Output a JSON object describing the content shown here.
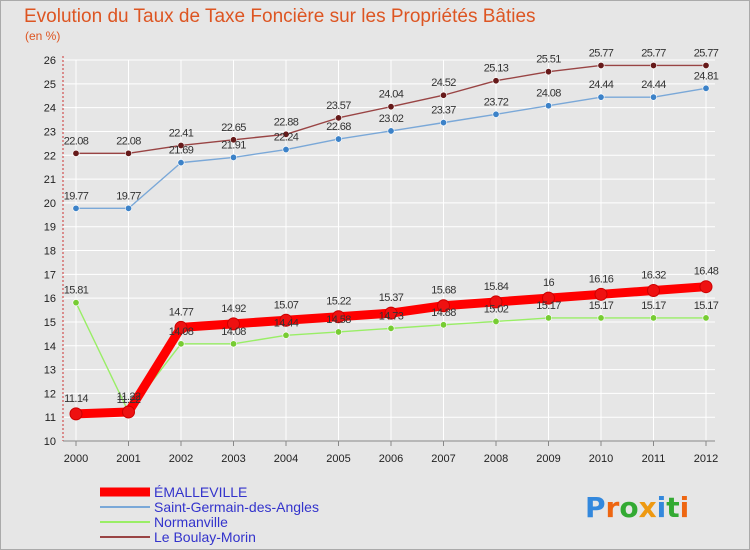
{
  "chart_data": {
    "type": "line",
    "title": "Evolution du Taux de Taxe Foncière sur les Propriétés Bâties",
    "subtitle": "(en %)",
    "xlabel": "",
    "ylabel": "",
    "categories": [
      "2000",
      "2001",
      "2002",
      "2003",
      "2004",
      "2005",
      "2006",
      "2007",
      "2008",
      "2009",
      "2010",
      "2011",
      "2012"
    ],
    "ylim": [
      10,
      26
    ],
    "yticks": [
      "10",
      "11",
      "12",
      "13",
      "14",
      "15",
      "16",
      "17",
      "18",
      "19",
      "20",
      "21",
      "22",
      "23",
      "24",
      "25",
      "26"
    ],
    "grid": true,
    "legend": "bottom-left",
    "series": [
      {
        "name": "ÉMALLEVILLE",
        "color": "#ff0000",
        "marker_color": "#ee1111",
        "emphasis": true,
        "values": [
          11.14,
          11.22,
          14.77,
          14.92,
          15.07,
          15.22,
          15.37,
          15.68,
          15.84,
          16,
          16.16,
          16.32,
          16.48
        ],
        "labels": [
          "11.14",
          "11.22",
          "14.77",
          "14.92",
          "15.07",
          "15.22",
          "15.37",
          "15.68",
          "15.84",
          "16",
          "16.16",
          "16.32",
          "16.48"
        ]
      },
      {
        "name": "Saint-Germain-des-Angles",
        "color": "#7aa8d8",
        "marker_color": "#3c82c8",
        "emphasis": false,
        "values": [
          19.77,
          19.77,
          21.69,
          21.91,
          22.24,
          22.68,
          23.02,
          23.37,
          23.72,
          24.08,
          24.44,
          24.44,
          24.81
        ],
        "labels": [
          "19.77",
          "19.77",
          "21.69",
          "21.91",
          "22.24",
          "22.68",
          "23.02",
          "23.37",
          "23.72",
          "24.08",
          "24.44",
          "24.44",
          "24.81"
        ]
      },
      {
        "name": "Normanville",
        "color": "#99ee66",
        "marker_color": "#77cc33",
        "emphasis": false,
        "values": [
          15.81,
          11.22,
          14.08,
          14.08,
          14.44,
          14.58,
          14.73,
          14.88,
          15.02,
          15.17,
          15.17,
          15.17,
          15.17
        ],
        "labels": [
          "15.81",
          "11.22",
          "14.08",
          "14.08",
          "14.44",
          "14.58",
          "14.73",
          "14.88",
          "15.02",
          "15.17",
          "15.17",
          "15.17",
          "15.17"
        ]
      },
      {
        "name": "Le Boulay-Morin",
        "color": "#994444",
        "marker_color": "#661a1a",
        "emphasis": false,
        "values": [
          22.08,
          22.08,
          22.41,
          22.65,
          22.88,
          23.57,
          24.04,
          24.52,
          25.13,
          25.51,
          25.77,
          25.77,
          25.77
        ],
        "labels": [
          "22.08",
          "22.08",
          "22.41",
          "22.65",
          "22.88",
          "23.57",
          "24.04",
          "24.52",
          "25.13",
          "25.51",
          "25.77",
          "25.77",
          "25.77"
        ]
      }
    ]
  },
  "branding": {
    "logo_text": "Proxiti",
    "letters": [
      "P",
      "r",
      "o",
      "x",
      "i",
      "t",
      "i"
    ],
    "letter_colors": [
      "#3388dd",
      "#ee6611",
      "#33aa33",
      "#ee9911",
      "#3388dd",
      "#33aa33",
      "#ee6611"
    ]
  },
  "colors": {
    "title": "#dd5522",
    "subtitle": "#dd5522",
    "axis_text": "#222222",
    "label_text": "#333333",
    "legend_text": "#3333cc",
    "grid": "#ffffff",
    "plot_bg": "#e6e6e6"
  }
}
